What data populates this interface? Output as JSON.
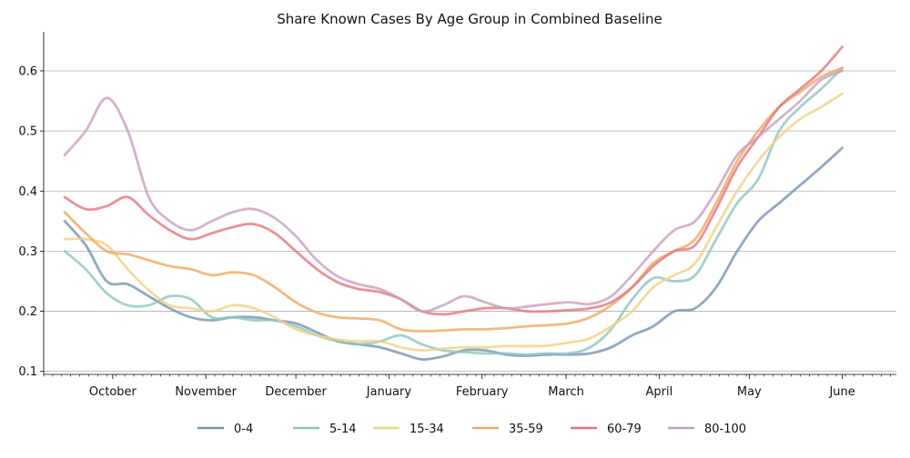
{
  "chart_data": {
    "type": "line",
    "title": "Share Known Cases By Age Group in Combined Baseline",
    "xlabel": "",
    "ylabel": "",
    "x_tick_labels": [
      "October",
      "November",
      "December",
      "January",
      "February",
      "March",
      "April",
      "May",
      "June"
    ],
    "y_ticks": [
      0.1,
      0.2,
      0.3,
      0.4,
      0.5,
      0.6
    ],
    "y_tick_labels": [
      "0.1",
      "0.2",
      "0.3",
      "0.4",
      "0.5",
      "0.6"
    ],
    "ylim": [
      0.095,
      0.665
    ],
    "grid": "horizontal",
    "legend_position": "bottom",
    "x": [
      "2020-09-15",
      "2020-09-22",
      "2020-09-29",
      "2020-10-06",
      "2020-10-13",
      "2020-10-20",
      "2020-10-27",
      "2020-11-03",
      "2020-11-10",
      "2020-11-17",
      "2020-11-24",
      "2020-12-01",
      "2020-12-08",
      "2020-12-15",
      "2020-12-22",
      "2020-12-29",
      "2021-01-05",
      "2021-01-12",
      "2021-01-19",
      "2021-01-26",
      "2021-02-02",
      "2021-02-09",
      "2021-02-16",
      "2021-02-23",
      "2021-03-02",
      "2021-03-09",
      "2021-03-16",
      "2021-03-23",
      "2021-03-30",
      "2021-04-06",
      "2021-04-13",
      "2021-04-20",
      "2021-04-27",
      "2021-05-04",
      "2021-05-11",
      "2021-05-18",
      "2021-05-25",
      "2021-06-01"
    ],
    "series": [
      {
        "name": "0-4",
        "color": "#7393b3",
        "values": [
          0.35,
          0.31,
          0.25,
          0.245,
          0.225,
          0.205,
          0.19,
          0.185,
          0.19,
          0.19,
          0.185,
          0.18,
          0.165,
          0.15,
          0.145,
          0.14,
          0.13,
          0.12,
          0.125,
          0.135,
          0.135,
          0.128,
          0.126,
          0.128,
          0.128,
          0.13,
          0.14,
          0.16,
          0.175,
          0.2,
          0.205,
          0.24,
          0.3,
          0.35,
          0.38,
          0.41,
          0.44,
          0.472
        ]
      },
      {
        "name": "5-14",
        "color": "#8cc4c0",
        "values": [
          0.3,
          0.27,
          0.23,
          0.21,
          0.21,
          0.225,
          0.22,
          0.19,
          0.19,
          0.185,
          0.185,
          0.175,
          0.16,
          0.15,
          0.145,
          0.15,
          0.16,
          0.145,
          0.135,
          0.132,
          0.13,
          0.13,
          0.128,
          0.13,
          0.13,
          0.14,
          0.17,
          0.22,
          0.255,
          0.25,
          0.26,
          0.32,
          0.38,
          0.42,
          0.5,
          0.54,
          0.57,
          0.605
        ]
      },
      {
        "name": "15-34",
        "color": "#f3d27f",
        "values": [
          0.32,
          0.32,
          0.31,
          0.27,
          0.235,
          0.21,
          0.205,
          0.2,
          0.21,
          0.205,
          0.19,
          0.17,
          0.16,
          0.153,
          0.15,
          0.15,
          0.14,
          0.135,
          0.138,
          0.14,
          0.14,
          0.142,
          0.142,
          0.143,
          0.148,
          0.155,
          0.175,
          0.2,
          0.24,
          0.26,
          0.28,
          0.34,
          0.4,
          0.45,
          0.49,
          0.52,
          0.54,
          0.562
        ]
      },
      {
        "name": "35-59",
        "color": "#f0a860",
        "values": [
          0.365,
          0.33,
          0.3,
          0.295,
          0.285,
          0.275,
          0.27,
          0.26,
          0.265,
          0.26,
          0.24,
          0.215,
          0.198,
          0.19,
          0.188,
          0.185,
          0.17,
          0.167,
          0.168,
          0.17,
          0.17,
          0.172,
          0.175,
          0.177,
          0.18,
          0.19,
          0.21,
          0.24,
          0.28,
          0.3,
          0.32,
          0.38,
          0.45,
          0.5,
          0.54,
          0.565,
          0.59,
          0.605
        ]
      },
      {
        "name": "60-79",
        "color": "#e8747a",
        "values": [
          0.39,
          0.37,
          0.375,
          0.39,
          0.36,
          0.335,
          0.32,
          0.33,
          0.34,
          0.345,
          0.33,
          0.3,
          0.27,
          0.248,
          0.237,
          0.232,
          0.22,
          0.2,
          0.195,
          0.2,
          0.205,
          0.205,
          0.2,
          0.2,
          0.202,
          0.205,
          0.215,
          0.24,
          0.275,
          0.3,
          0.31,
          0.37,
          0.44,
          0.49,
          0.54,
          0.57,
          0.6,
          0.64
        ]
      },
      {
        "name": "80-100",
        "color": "#c99dc0",
        "values": [
          0.46,
          0.5,
          0.555,
          0.5,
          0.39,
          0.35,
          0.335,
          0.35,
          0.365,
          0.37,
          0.355,
          0.325,
          0.285,
          0.258,
          0.245,
          0.237,
          0.22,
          0.2,
          0.21,
          0.225,
          0.215,
          0.205,
          0.208,
          0.212,
          0.215,
          0.212,
          0.225,
          0.26,
          0.3,
          0.335,
          0.35,
          0.4,
          0.46,
          0.49,
          0.52,
          0.55,
          0.585,
          0.6
        ]
      }
    ]
  }
}
